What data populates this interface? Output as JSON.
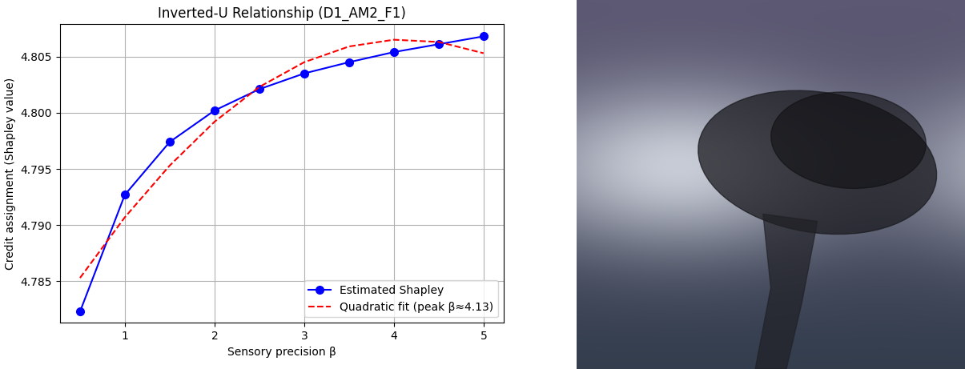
{
  "chart_data": {
    "type": "line",
    "title": "Inverted-U Relationship (D1_AM2_F1)",
    "x_label": "Sensory precision β",
    "y_label": "Credit assignment (Shapley value)",
    "x": [
      0.5,
      1.0,
      1.5,
      2.0,
      2.5,
      3.0,
      3.5,
      4.0,
      4.5,
      5.0
    ],
    "series": [
      {
        "name": "Estimated Shapley",
        "color": "#0000ff",
        "marker": "o",
        "line_style": "solid",
        "values": [
          4.7823,
          4.7927,
          4.7974,
          4.8002,
          4.8021,
          4.8035,
          4.8045,
          4.8054,
          4.8061,
          4.8068
        ]
      },
      {
        "name": "Quadratic fit (peak β≈4.13)",
        "color": "#ff0000",
        "marker": "none",
        "line_style": "dashed",
        "values": [
          4.7853,
          4.7907,
          4.7953,
          4.7992,
          4.8023,
          4.8045,
          4.8059,
          4.8065,
          4.8063,
          4.8053
        ]
      }
    ],
    "xlim": [
      0.275,
      5.225
    ],
    "ylim": [
      4.7813,
      4.8079
    ],
    "xticks": [
      1,
      2,
      3,
      4,
      5
    ],
    "yticks": [
      4.785,
      {
        "value": 4.79,
        "label": "4.790"
      },
      4.795,
      {
        "value": 4.8,
        "label": "4.800"
      },
      4.805
    ],
    "grid": true,
    "legend": "lower right"
  }
}
